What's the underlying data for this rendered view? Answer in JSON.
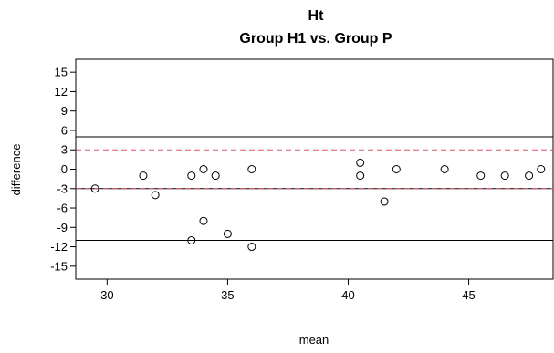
{
  "chart_data": {
    "type": "scatter",
    "title": "Ht",
    "subtitle": "Group H1 vs. Group  P",
    "xlabel": "mean",
    "ylabel": "difference",
    "xlim": [
      28.7,
      48.5
    ],
    "ylim": [
      -17,
      17
    ],
    "x_ticks": [
      30,
      35,
      40,
      45
    ],
    "x_tick_labels": [
      "30",
      "35",
      "40",
      "45"
    ],
    "y_ticks": [
      15,
      12,
      9,
      6,
      3,
      0,
      -3,
      -6,
      -9,
      -12,
      -15
    ],
    "y_tick_labels": [
      "15",
      "12",
      "9",
      "6",
      "3",
      "0",
      "-3",
      "-6",
      "-9",
      "-12",
      "-15"
    ],
    "grid": false,
    "reference_lines": [
      {
        "y": 5,
        "style": "solid",
        "color": "#000000"
      },
      {
        "y": 3,
        "style": "dashed",
        "color": "#d9566b"
      },
      {
        "y": -3,
        "style": "solid",
        "color": "#000000"
      },
      {
        "y": -3,
        "style": "dashed",
        "color": "#d9566b"
      },
      {
        "y": -11,
        "style": "solid",
        "color": "#000000"
      }
    ],
    "marker": "open-circle",
    "point_color": "#000000",
    "points": [
      {
        "x": 29.5,
        "y": -3
      },
      {
        "x": 31.5,
        "y": -1
      },
      {
        "x": 32.0,
        "y": -4
      },
      {
        "x": 33.5,
        "y": -1
      },
      {
        "x": 34.0,
        "y": 0
      },
      {
        "x": 34.5,
        "y": -1
      },
      {
        "x": 34.0,
        "y": -8
      },
      {
        "x": 33.5,
        "y": -11
      },
      {
        "x": 35.0,
        "y": -10
      },
      {
        "x": 36.0,
        "y": 0
      },
      {
        "x": 36.0,
        "y": -12
      },
      {
        "x": 40.5,
        "y": 1
      },
      {
        "x": 40.5,
        "y": -1
      },
      {
        "x": 41.5,
        "y": -5
      },
      {
        "x": 42.0,
        "y": 0
      },
      {
        "x": 44.0,
        "y": 0
      },
      {
        "x": 45.5,
        "y": -1
      },
      {
        "x": 46.5,
        "y": -1
      },
      {
        "x": 47.5,
        "y": -1
      },
      {
        "x": 48.0,
        "y": 0
      }
    ]
  }
}
